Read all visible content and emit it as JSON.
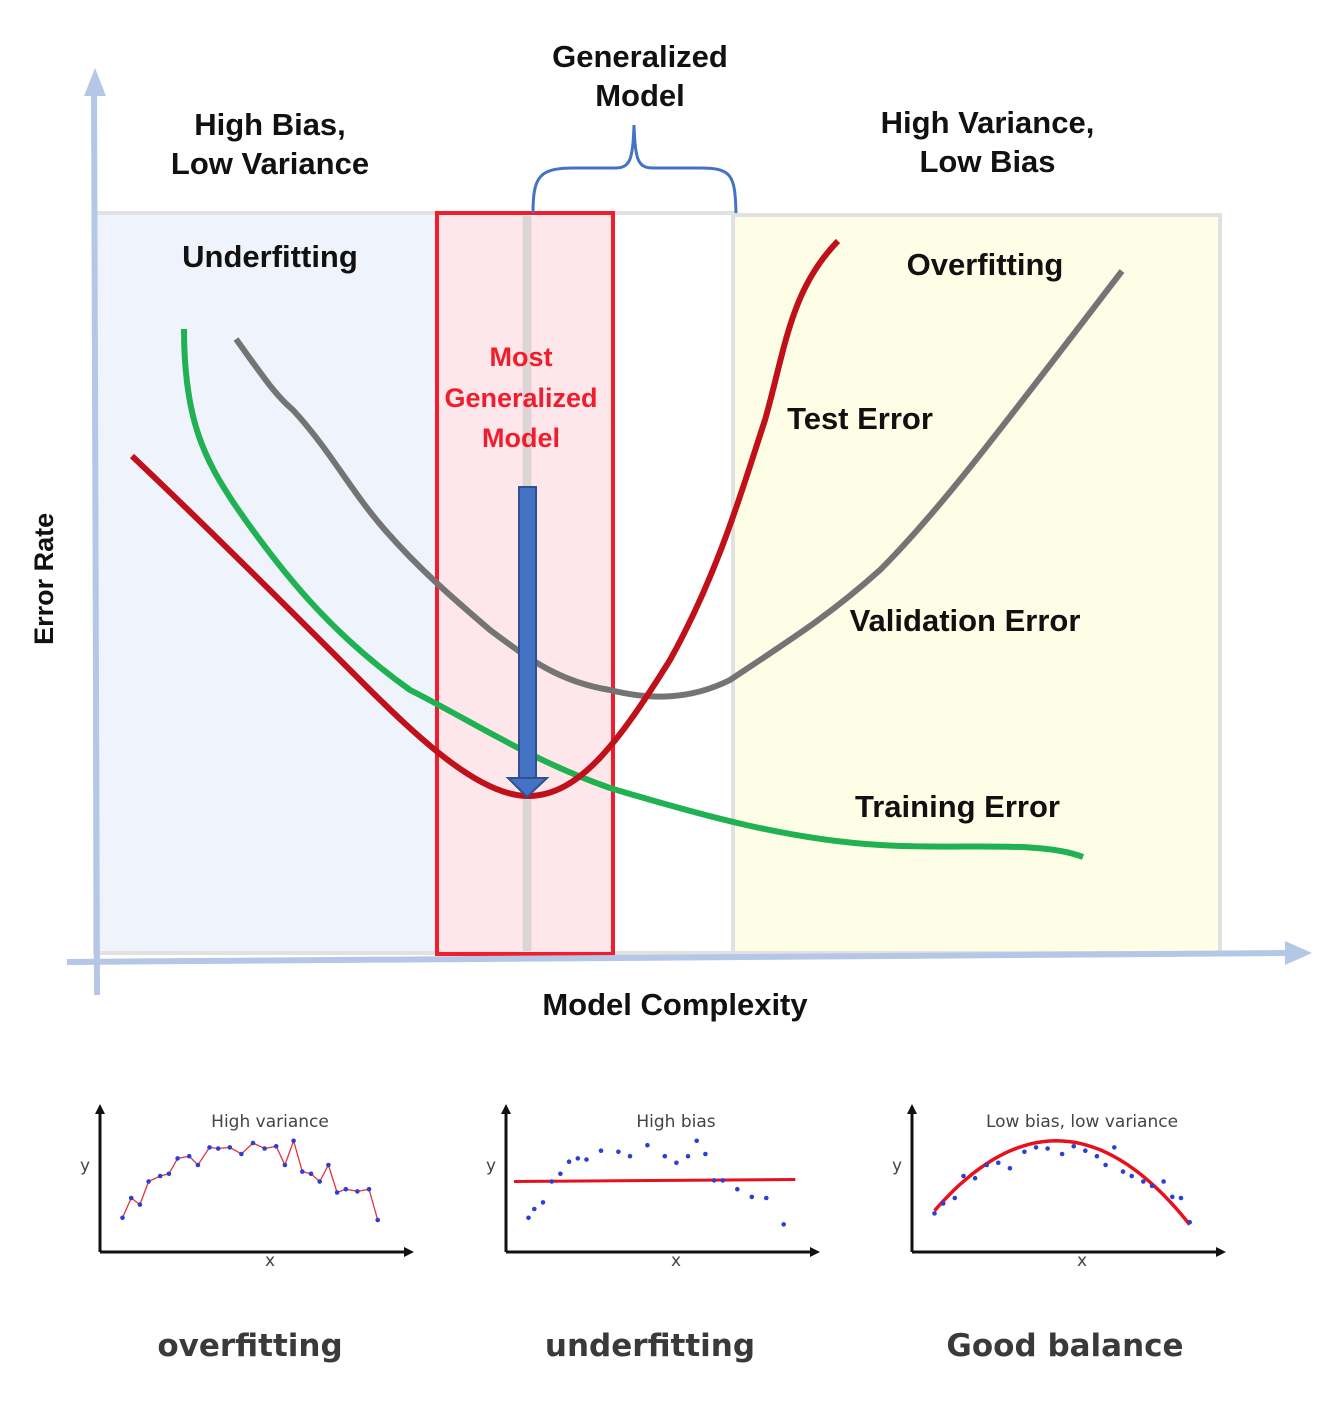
{
  "labels": {
    "generalized_model": "Generalized\nModel",
    "high_bias": "High Bias,\nLow Variance",
    "high_variance": "High Variance,\nLow Bias",
    "underfitting_region": "Underfitting",
    "overfitting_region": "Overfitting",
    "most_generalized": "Most\nGeneralized\nModel",
    "test_error": "Test Error",
    "validation_error": "Validation Error",
    "training_error": "Training Error",
    "y_axis": "Error Rate",
    "x_axis": "Model Complexity"
  },
  "colors": {
    "test_error": "#c0101a",
    "validation_error": "#747474",
    "training_error": "#1fb152",
    "underfit_bg": "#eff3fc",
    "overfit_bg": "#fefee6",
    "highlight_fill": "#fde3e6",
    "highlight_border": "#f01e2c",
    "arrow": "#4472c4",
    "axis": "#b4c7e7",
    "bracket": "#4472c4"
  },
  "panels": [
    {
      "title": "High variance",
      "caption": "overfitting",
      "ylabel": "y",
      "xlabel": "x",
      "points": [
        [
          0.05,
          0.22
        ],
        [
          0.08,
          0.4
        ],
        [
          0.11,
          0.34
        ],
        [
          0.14,
          0.55
        ],
        [
          0.18,
          0.6
        ],
        [
          0.21,
          0.62
        ],
        [
          0.24,
          0.76
        ],
        [
          0.28,
          0.78
        ],
        [
          0.31,
          0.7
        ],
        [
          0.35,
          0.86
        ],
        [
          0.38,
          0.85
        ],
        [
          0.42,
          0.86
        ],
        [
          0.46,
          0.8
        ],
        [
          0.5,
          0.9
        ],
        [
          0.54,
          0.85
        ],
        [
          0.58,
          0.87
        ],
        [
          0.61,
          0.7
        ],
        [
          0.64,
          0.92
        ],
        [
          0.67,
          0.64
        ],
        [
          0.7,
          0.62
        ],
        [
          0.73,
          0.55
        ],
        [
          0.76,
          0.7
        ],
        [
          0.79,
          0.45
        ],
        [
          0.82,
          0.48
        ],
        [
          0.86,
          0.46
        ],
        [
          0.9,
          0.48
        ],
        [
          0.93,
          0.2
        ]
      ],
      "fit": "interpolate"
    },
    {
      "title": "High bias",
      "caption": "underfitting",
      "ylabel": "y",
      "xlabel": "x",
      "points": [
        [
          0.05,
          0.22
        ],
        [
          0.07,
          0.3
        ],
        [
          0.1,
          0.36
        ],
        [
          0.13,
          0.55
        ],
        [
          0.16,
          0.62
        ],
        [
          0.19,
          0.73
        ],
        [
          0.22,
          0.76
        ],
        [
          0.25,
          0.75
        ],
        [
          0.3,
          0.83
        ],
        [
          0.36,
          0.82
        ],
        [
          0.4,
          0.78
        ],
        [
          0.46,
          0.88
        ],
        [
          0.52,
          0.78
        ],
        [
          0.56,
          0.72
        ],
        [
          0.6,
          0.78
        ],
        [
          0.63,
          0.92
        ],
        [
          0.66,
          0.8
        ],
        [
          0.69,
          0.56
        ],
        [
          0.72,
          0.56
        ],
        [
          0.77,
          0.48
        ],
        [
          0.82,
          0.41
        ],
        [
          0.87,
          0.4
        ],
        [
          0.93,
          0.16
        ]
      ],
      "fit": "flat",
      "flat_value": 0.55
    },
    {
      "title": "Low bias, low variance",
      "caption": "Good balance",
      "ylabel": "y",
      "xlabel": "x",
      "points": [
        [
          0.05,
          0.26
        ],
        [
          0.08,
          0.35
        ],
        [
          0.12,
          0.4
        ],
        [
          0.15,
          0.6
        ],
        [
          0.19,
          0.58
        ],
        [
          0.23,
          0.7
        ],
        [
          0.27,
          0.72
        ],
        [
          0.31,
          0.67
        ],
        [
          0.36,
          0.82
        ],
        [
          0.4,
          0.86
        ],
        [
          0.44,
          0.85
        ],
        [
          0.49,
          0.8
        ],
        [
          0.53,
          0.87
        ],
        [
          0.57,
          0.83
        ],
        [
          0.61,
          0.78
        ],
        [
          0.64,
          0.7
        ],
        [
          0.67,
          0.86
        ],
        [
          0.7,
          0.64
        ],
        [
          0.73,
          0.6
        ],
        [
          0.77,
          0.55
        ],
        [
          0.8,
          0.51
        ],
        [
          0.84,
          0.55
        ],
        [
          0.87,
          0.41
        ],
        [
          0.9,
          0.4
        ],
        [
          0.93,
          0.18
        ]
      ],
      "fit": "parabola"
    }
  ]
}
